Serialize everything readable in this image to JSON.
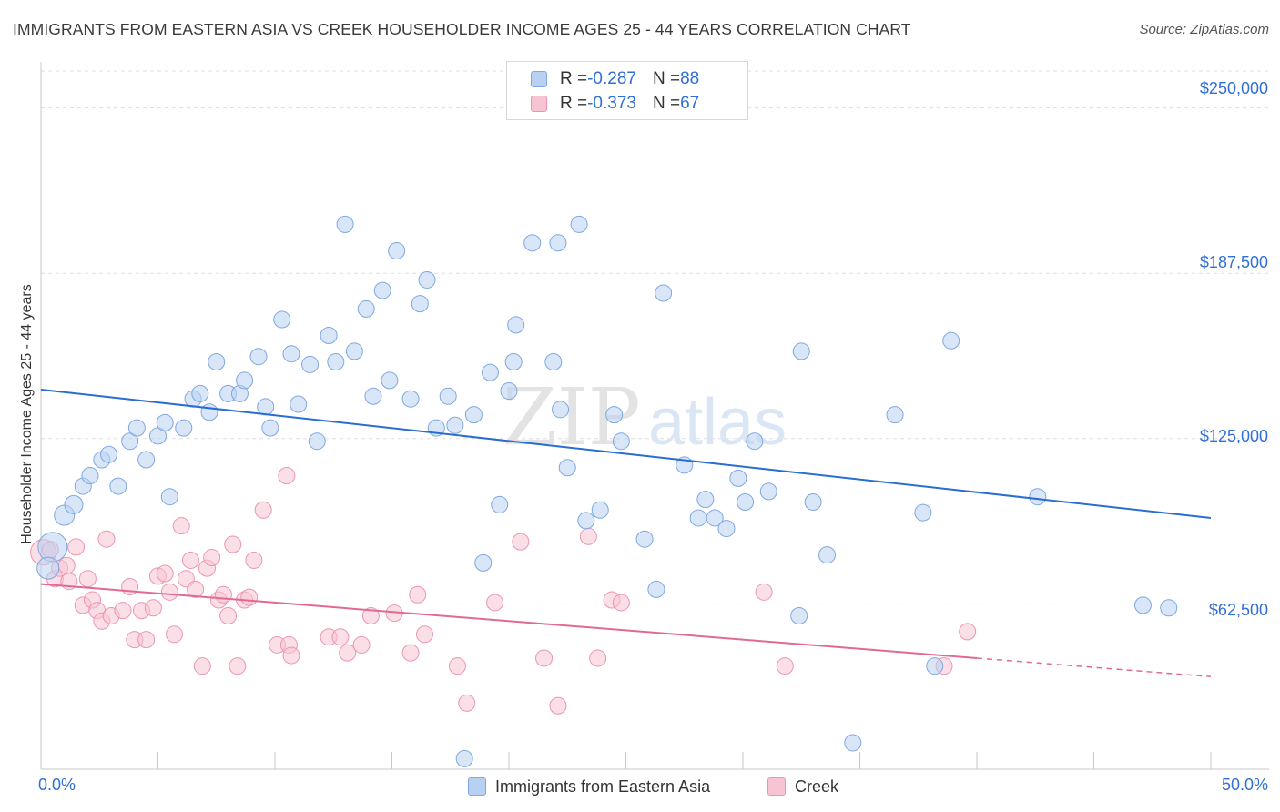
{
  "header": {
    "title": "IMMIGRANTS FROM EASTERN ASIA VS CREEK HOUSEHOLDER INCOME AGES 25 - 44 YEARS CORRELATION CHART",
    "source": "Source: ZipAtlas.com"
  },
  "colors": {
    "blue_fill": "#b8d1f2",
    "blue_stroke": "#7fa8e0",
    "blue_line": "#2a6dd0",
    "pink_fill": "#f7c4d4",
    "pink_stroke": "#eb95b1",
    "pink_line": "#e06a94",
    "axis_text": "#2f6fd6",
    "grid": "#dddddd"
  },
  "legend": {
    "blue": {
      "r_label": "R = ",
      "r_value": "-0.287",
      "n_label": "N = ",
      "n_value": "88"
    },
    "pink": {
      "r_label": "R = ",
      "r_value": "-0.373",
      "n_label": "N = ",
      "n_value": "67"
    }
  },
  "watermark": {
    "text_zip": "ZIP",
    "text_atlas": "atlas"
  },
  "chart_data": {
    "type": "scatter",
    "title": "IMMIGRANTS FROM EASTERN ASIA VS CREEK HOUSEHOLDER INCOME AGES 25 - 44 YEARS CORRELATION CHART",
    "xlabel": "",
    "ylabel": "Householder Income Ages 25 - 44 years",
    "xlim": [
      0,
      50
    ],
    "ylim": [
      0,
      265000
    ],
    "x_tick_labels": [
      "0.0%",
      "50.0%"
    ],
    "y_ticks": [
      62500,
      125000,
      187500,
      250000
    ],
    "y_tick_labels": [
      "$62,500",
      "$125,000",
      "$187,500",
      "$250,000"
    ],
    "grid": "horizontal dashed",
    "legend_position": "bottom",
    "series": [
      {
        "name": "Immigrants from Eastern Asia",
        "color": "#b8d1f2",
        "trend": {
          "x": [
            0,
            50
          ],
          "y": [
            143500,
            95000
          ]
        },
        "points": [
          [
            0.5,
            84000,
            16
          ],
          [
            1.0,
            96000,
            11
          ],
          [
            1.4,
            100000,
            10
          ],
          [
            1.8,
            107000,
            9
          ],
          [
            2.1,
            111000,
            9
          ],
          [
            2.6,
            117000,
            9
          ],
          [
            2.9,
            119000,
            9
          ],
          [
            3.3,
            107000,
            9
          ],
          [
            3.8,
            124000,
            9
          ],
          [
            4.1,
            129000,
            9
          ],
          [
            4.5,
            117000,
            9
          ],
          [
            5.0,
            126000,
            9
          ],
          [
            5.3,
            131000,
            9
          ],
          [
            5.5,
            103000,
            9
          ],
          [
            6.1,
            129000,
            9
          ],
          [
            6.5,
            140000,
            9
          ],
          [
            6.8,
            142000,
            9
          ],
          [
            7.2,
            135000,
            9
          ],
          [
            7.5,
            154000,
            9
          ],
          [
            8.0,
            142000,
            9
          ],
          [
            8.5,
            142000,
            9
          ],
          [
            8.7,
            147000,
            9
          ],
          [
            9.3,
            156000,
            9
          ],
          [
            9.6,
            137000,
            9
          ],
          [
            9.8,
            129000,
            9
          ],
          [
            10.3,
            170000,
            9
          ],
          [
            10.7,
            157000,
            9
          ],
          [
            11.0,
            138000,
            9
          ],
          [
            11.5,
            153000,
            9
          ],
          [
            11.8,
            124000,
            9
          ],
          [
            12.3,
            164000,
            9
          ],
          [
            12.6,
            154000,
            9
          ],
          [
            13.0,
            206000,
            9
          ],
          [
            13.4,
            158000,
            9
          ],
          [
            13.9,
            174000,
            9
          ],
          [
            14.2,
            141000,
            9
          ],
          [
            14.6,
            181000,
            9
          ],
          [
            14.9,
            147000,
            9
          ],
          [
            15.2,
            196000,
            9
          ],
          [
            15.8,
            140000,
            9
          ],
          [
            16.2,
            176000,
            9
          ],
          [
            16.5,
            185000,
            9
          ],
          [
            16.9,
            129000,
            9
          ],
          [
            17.4,
            141000,
            9
          ],
          [
            17.7,
            130000,
            9
          ],
          [
            18.1,
            4000,
            9
          ],
          [
            18.5,
            134000,
            9
          ],
          [
            18.9,
            78000,
            9
          ],
          [
            19.2,
            150000,
            9
          ],
          [
            19.6,
            100000,
            9
          ],
          [
            20.0,
            143000,
            9
          ],
          [
            20.2,
            154000,
            9
          ],
          [
            20.3,
            168000,
            9
          ],
          [
            21.0,
            199000,
            9
          ],
          [
            21.9,
            154000,
            9
          ],
          [
            22.1,
            199000,
            9
          ],
          [
            22.2,
            136000,
            9
          ],
          [
            22.5,
            114000,
            9
          ],
          [
            23.0,
            206000,
            9
          ],
          [
            23.3,
            94000,
            9
          ],
          [
            23.9,
            98000,
            9
          ],
          [
            24.5,
            134000,
            9
          ],
          [
            24.8,
            124000,
            9
          ],
          [
            25.8,
            87000,
            9
          ],
          [
            26.3,
            68000,
            9
          ],
          [
            26.6,
            180000,
            9
          ],
          [
            27.5,
            115000,
            9
          ],
          [
            28.1,
            95000,
            9
          ],
          [
            28.4,
            102000,
            9
          ],
          [
            28.8,
            95000,
            9
          ],
          [
            29.3,
            91000,
            9
          ],
          [
            29.8,
            110000,
            9
          ],
          [
            30.1,
            101000,
            9
          ],
          [
            30.5,
            124000,
            9
          ],
          [
            31.1,
            105000,
            9
          ],
          [
            32.4,
            58000,
            9
          ],
          [
            32.5,
            158000,
            9
          ],
          [
            33.0,
            101000,
            9
          ],
          [
            33.6,
            81000,
            9
          ],
          [
            34.7,
            10000,
            9
          ],
          [
            36.5,
            134000,
            9
          ],
          [
            37.7,
            97000,
            9
          ],
          [
            38.2,
            39000,
            9
          ],
          [
            38.9,
            162000,
            9
          ],
          [
            42.6,
            103000,
            9
          ],
          [
            47.1,
            62000,
            9
          ],
          [
            48.2,
            61000,
            9
          ],
          [
            0.3,
            76000,
            12
          ]
        ]
      },
      {
        "name": "Creek",
        "color": "#f7c4d4",
        "trend": {
          "x": [
            0,
            40
          ],
          "y": [
            70000,
            42000
          ],
          "dashed_to": {
            "x": [
              40,
              50
            ],
            "y": [
              42000,
              35000
            ]
          }
        },
        "points": [
          [
            0.1,
            82000,
            14
          ],
          [
            0.4,
            83000,
            9
          ],
          [
            0.6,
            72000,
            9
          ],
          [
            0.8,
            76000,
            9
          ],
          [
            1.1,
            77000,
            9
          ],
          [
            1.2,
            71000,
            9
          ],
          [
            1.5,
            84000,
            9
          ],
          [
            1.8,
            62000,
            9
          ],
          [
            2.0,
            72000,
            9
          ],
          [
            2.2,
            64000,
            9
          ],
          [
            2.4,
            60000,
            9
          ],
          [
            2.6,
            56000,
            9
          ],
          [
            2.8,
            87000,
            9
          ],
          [
            3.0,
            58000,
            9
          ],
          [
            3.5,
            60000,
            9
          ],
          [
            3.8,
            69000,
            9
          ],
          [
            4.0,
            49000,
            9
          ],
          [
            4.3,
            60000,
            9
          ],
          [
            4.5,
            49000,
            9
          ],
          [
            4.8,
            61000,
            9
          ],
          [
            5.0,
            73000,
            9
          ],
          [
            5.3,
            74000,
            9
          ],
          [
            5.5,
            67000,
            9
          ],
          [
            5.7,
            51000,
            9
          ],
          [
            6.0,
            92000,
            9
          ],
          [
            6.2,
            72000,
            9
          ],
          [
            6.4,
            79000,
            9
          ],
          [
            6.6,
            68000,
            9
          ],
          [
            6.9,
            39000,
            9
          ],
          [
            7.1,
            76000,
            9
          ],
          [
            7.3,
            80000,
            9
          ],
          [
            7.6,
            64000,
            9
          ],
          [
            7.8,
            66000,
            9
          ],
          [
            8.0,
            58000,
            9
          ],
          [
            8.2,
            85000,
            9
          ],
          [
            8.4,
            39000,
            9
          ],
          [
            8.7,
            64000,
            9
          ],
          [
            8.9,
            65000,
            9
          ],
          [
            9.1,
            79000,
            9
          ],
          [
            9.5,
            98000,
            9
          ],
          [
            10.1,
            47000,
            9
          ],
          [
            10.5,
            111000,
            9
          ],
          [
            10.6,
            47000,
            9
          ],
          [
            10.7,
            43000,
            9
          ],
          [
            12.3,
            50000,
            9
          ],
          [
            12.8,
            50000,
            9
          ],
          [
            13.1,
            44000,
            9
          ],
          [
            13.7,
            47000,
            9
          ],
          [
            14.1,
            58000,
            9
          ],
          [
            15.1,
            59000,
            9
          ],
          [
            15.8,
            44000,
            9
          ],
          [
            16.1,
            66000,
            9
          ],
          [
            16.4,
            51000,
            9
          ],
          [
            17.8,
            39000,
            9
          ],
          [
            18.2,
            25000,
            9
          ],
          [
            19.4,
            63000,
            9
          ],
          [
            20.5,
            86000,
            9
          ],
          [
            21.5,
            42000,
            9
          ],
          [
            22.1,
            24000,
            9
          ],
          [
            23.4,
            88000,
            9
          ],
          [
            23.8,
            42000,
            9
          ],
          [
            24.4,
            64000,
            9
          ],
          [
            24.8,
            63000,
            9
          ],
          [
            30.9,
            67000,
            9
          ],
          [
            31.8,
            39000,
            9
          ],
          [
            38.6,
            39000,
            9
          ],
          [
            39.6,
            52000,
            9
          ]
        ]
      }
    ]
  },
  "bottom_legend": {
    "blue_label": "Immigrants from Eastern Asia",
    "pink_label": "Creek"
  },
  "axes": {
    "x_left": "0.0%",
    "x_right": "50.0%",
    "y_title": "Householder Income Ages 25 - 44 years",
    "y_labels": [
      "$250,000",
      "$187,500",
      "$125,000",
      "$62,500"
    ]
  }
}
